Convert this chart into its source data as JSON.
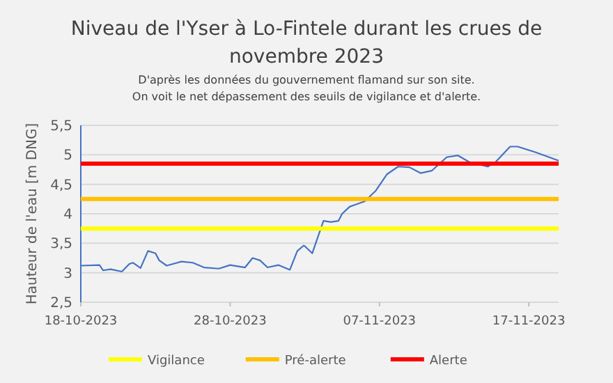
{
  "chart_data": {
    "type": "line",
    "title": "Niveau de l'Yser à Lo-Fintele durant les crues de novembre 2023",
    "subtitle": "D'après les données du gouvernement flamand sur son site.\nOn voit le net dépassement des seuils de vigilance et d'alerte.",
    "ylabel": "Hauteur de l'eau [m DNG]",
    "xlim": [
      "2023-10-18",
      "2023-11-19"
    ],
    "xticks": [
      {
        "value": "2023-10-18",
        "label": "18-10-2023"
      },
      {
        "value": "2023-10-28",
        "label": "28-10-2023"
      },
      {
        "value": "2023-11-07",
        "label": "07-11-2023"
      },
      {
        "value": "2023-11-17",
        "label": "17-11-2023"
      }
    ],
    "ylim": [
      2.5,
      5.5
    ],
    "yticks": [
      {
        "value": 2.5,
        "label": "2,5"
      },
      3,
      {
        "value": 3.5,
        "label": "3,5"
      },
      4,
      {
        "value": 4.5,
        "label": "4,5"
      },
      5,
      {
        "value": 5.5,
        "label": "5,5"
      }
    ],
    "grid": "y",
    "legend": "bottom",
    "marker": "none",
    "line_style": "solid",
    "series": [
      {
        "color": "#4472c4",
        "x": [
          "2023-10-18",
          "2023-10-19T06:00",
          "2023-10-19T12:00",
          "2023-10-20",
          "2023-10-20T18:00",
          "2023-10-21T06:00",
          "2023-10-21T12:00",
          "2023-10-22",
          "2023-10-22T12:00",
          "2023-10-23",
          "2023-10-23T06:00",
          "2023-10-23T18:00",
          "2023-10-24T18:00",
          "2023-10-25T12:00",
          "2023-10-26T06:00",
          "2023-10-27T06:00",
          "2023-10-28",
          "2023-10-29",
          "2023-10-29T12:00",
          "2023-10-30",
          "2023-10-30T12:00",
          "2023-10-31T06:00",
          "2023-11-01",
          "2023-11-01T12:00",
          "2023-11-01T22:00",
          "2023-11-02",
          "2023-11-02T12:00",
          "2023-11-03T06:00",
          "2023-11-03T18:00",
          "2023-11-04T06:00",
          "2023-11-04T12:00",
          "2023-11-05",
          "2023-11-06",
          "2023-11-06T18:00",
          "2023-11-07T12:00",
          "2023-11-08T06:00",
          "2023-11-09",
          "2023-11-09T18:00",
          "2023-11-10T12:00",
          "2023-11-11T12:00",
          "2023-11-12T06:00",
          "2023-11-13",
          "2023-11-14T06:00",
          "2023-11-14T18:00",
          "2023-11-15T18:00",
          "2023-11-16T06:00",
          "2023-11-17T12:00",
          "2023-11-19"
        ],
        "values": [
          3.12,
          3.13,
          3.04,
          3.06,
          3.02,
          3.15,
          3.17,
          3.08,
          3.37,
          3.33,
          3.21,
          3.12,
          3.19,
          3.17,
          3.09,
          3.07,
          3.13,
          3.09,
          3.25,
          3.21,
          3.09,
          3.13,
          3.05,
          3.37,
          3.46,
          3.45,
          3.33,
          3.88,
          3.86,
          3.88,
          4.0,
          4.12,
          4.21,
          4.39,
          4.67,
          4.8,
          4.79,
          4.69,
          4.73,
          4.96,
          4.99,
          4.88,
          4.8,
          4.87,
          5.14,
          5.14,
          5.04,
          4.9
        ]
      },
      {
        "name": "Vigilance",
        "color": "#ffff00",
        "x": [
          "2023-10-18",
          "2023-11-19"
        ],
        "values": [
          3.75,
          3.75
        ]
      },
      {
        "name": "Pré-alerte",
        "color": "#ffc000",
        "x": [
          "2023-10-18",
          "2023-11-19"
        ],
        "values": [
          4.25,
          4.25
        ]
      },
      {
        "name": "Alerte",
        "color": "#ff0000",
        "x": [
          "2023-10-18",
          "2023-11-19"
        ],
        "values": [
          4.85,
          4.85
        ]
      }
    ]
  }
}
